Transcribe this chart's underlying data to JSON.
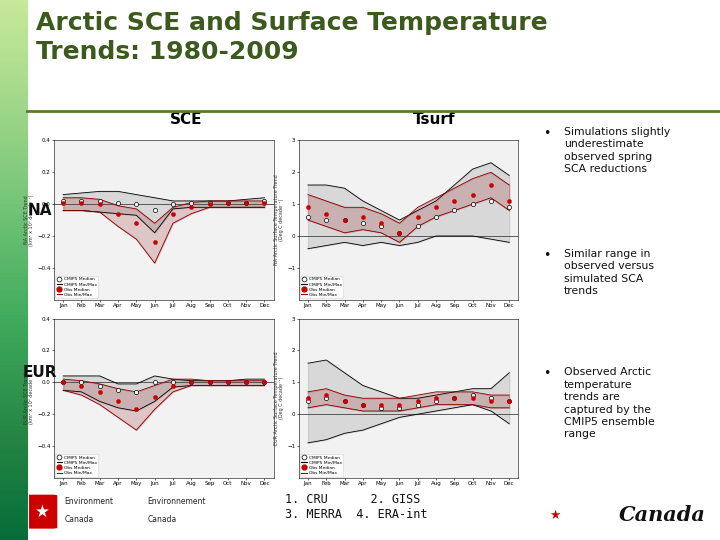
{
  "title_line1": "Arctic SCE and Surface Temperature",
  "title_line2": "Trends: 1980-2009",
  "title_color": "#3d5a1e",
  "title_fontsize": 18,
  "bg_color": "#ffffff",
  "col_headers": [
    "SCE",
    "Tsurf"
  ],
  "row_labels": [
    "NA",
    "EUR"
  ],
  "bullet_points": [
    "Simulations slightly\nunderestimate\nobserved spring\nSCA reductions",
    "Similar range in\nobserved versus\nsimulated SCA\ntrends",
    "Observed Arctic\ntemperature\ntrends are\ncaptured by the\nCMIP5 ensemble\nrange"
  ],
  "footnote": "1. CRU      2. GISS\n3. MERRA  4. ERA-int",
  "months": [
    "Jan",
    "Feb",
    "Mar",
    "Apr",
    "May",
    "Jun",
    "Jul",
    "Aug",
    "Sep",
    "Oct",
    "Nov",
    "Dec"
  ],
  "na_sce_cmip5_median": [
    0.02,
    0.02,
    0.02,
    0.01,
    0.0,
    -0.04,
    0.0,
    0.01,
    0.01,
    0.01,
    0.01,
    0.02
  ],
  "na_sce_cmip5_max": [
    0.06,
    0.07,
    0.08,
    0.08,
    0.06,
    0.04,
    0.02,
    0.02,
    0.02,
    0.02,
    0.03,
    0.04
  ],
  "na_sce_cmip5_min": [
    -0.04,
    -0.04,
    -0.05,
    -0.06,
    -0.07,
    -0.18,
    -0.03,
    -0.02,
    -0.02,
    -0.02,
    -0.02,
    -0.02
  ],
  "na_sce_obs_median": [
    0.01,
    0.01,
    0.0,
    -0.06,
    -0.12,
    -0.24,
    -0.06,
    -0.02,
    0.0,
    0.01,
    0.01,
    0.01
  ],
  "na_sce_obs_max": [
    0.04,
    0.04,
    0.03,
    -0.01,
    -0.03,
    -0.12,
    -0.02,
    0.01,
    0.02,
    0.02,
    0.02,
    0.02
  ],
  "na_sce_obs_min": [
    -0.04,
    -0.04,
    -0.05,
    -0.14,
    -0.22,
    -0.37,
    -0.12,
    -0.06,
    -0.02,
    -0.02,
    -0.02,
    -0.02
  ],
  "na_tsurf_cmip5_median": [
    0.6,
    0.5,
    0.5,
    0.4,
    0.3,
    0.1,
    0.3,
    0.6,
    0.8,
    1.0,
    1.1,
    0.9
  ],
  "na_tsurf_cmip5_max": [
    1.6,
    1.6,
    1.5,
    1.1,
    0.8,
    0.5,
    0.8,
    1.1,
    1.6,
    2.1,
    2.3,
    1.9
  ],
  "na_tsurf_cmip5_min": [
    -0.4,
    -0.3,
    -0.2,
    -0.3,
    -0.2,
    -0.3,
    -0.2,
    0.0,
    0.0,
    0.0,
    -0.1,
    -0.2
  ],
  "na_tsurf_obs_median": [
    0.9,
    0.7,
    0.5,
    0.6,
    0.4,
    0.1,
    0.6,
    0.9,
    1.1,
    1.3,
    1.6,
    1.1
  ],
  "na_tsurf_obs_max": [
    1.3,
    1.1,
    0.9,
    0.9,
    0.7,
    0.4,
    0.9,
    1.2,
    1.5,
    1.8,
    2.0,
    1.6
  ],
  "na_tsurf_obs_min": [
    0.5,
    0.3,
    0.1,
    0.2,
    0.1,
    -0.2,
    0.3,
    0.6,
    0.8,
    1.0,
    1.2,
    0.8
  ],
  "eur_sce_cmip5_median": [
    0.0,
    0.0,
    -0.02,
    -0.05,
    -0.06,
    0.0,
    0.0,
    0.0,
    0.0,
    0.0,
    0.0,
    0.0
  ],
  "eur_sce_cmip5_max": [
    0.04,
    0.04,
    0.04,
    -0.01,
    -0.01,
    0.04,
    0.02,
    0.01,
    0.01,
    0.01,
    0.02,
    0.02
  ],
  "eur_sce_cmip5_min": [
    -0.05,
    -0.06,
    -0.12,
    -0.16,
    -0.18,
    -0.12,
    -0.03,
    -0.02,
    -0.02,
    -0.02,
    -0.02,
    -0.02
  ],
  "eur_sce_obs_median": [
    0.0,
    -0.02,
    -0.06,
    -0.12,
    -0.17,
    -0.09,
    -0.02,
    0.0,
    0.0,
    0.0,
    0.0,
    0.0
  ],
  "eur_sce_obs_max": [
    0.02,
    0.01,
    -0.01,
    -0.04,
    -0.06,
    -0.02,
    0.02,
    0.02,
    0.01,
    0.01,
    0.01,
    0.01
  ],
  "eur_sce_obs_min": [
    -0.05,
    -0.08,
    -0.14,
    -0.22,
    -0.3,
    -0.17,
    -0.06,
    -0.02,
    -0.02,
    -0.02,
    -0.02,
    -0.02
  ],
  "eur_tsurf_cmip5_median": [
    0.4,
    0.5,
    0.4,
    0.3,
    0.2,
    0.2,
    0.3,
    0.4,
    0.5,
    0.6,
    0.5,
    0.4
  ],
  "eur_tsurf_cmip5_max": [
    1.6,
    1.7,
    1.3,
    0.9,
    0.7,
    0.5,
    0.5,
    0.6,
    0.7,
    0.8,
    0.8,
    1.3
  ],
  "eur_tsurf_cmip5_min": [
    -0.9,
    -0.8,
    -0.6,
    -0.5,
    -0.3,
    -0.1,
    0.0,
    0.1,
    0.2,
    0.3,
    0.1,
    -0.3
  ],
  "eur_tsurf_obs_median": [
    0.5,
    0.6,
    0.4,
    0.3,
    0.3,
    0.3,
    0.4,
    0.5,
    0.5,
    0.5,
    0.4,
    0.4
  ],
  "eur_tsurf_obs_max": [
    0.7,
    0.8,
    0.6,
    0.5,
    0.5,
    0.5,
    0.6,
    0.7,
    0.7,
    0.7,
    0.6,
    0.6
  ],
  "eur_tsurf_obs_min": [
    0.2,
    0.3,
    0.2,
    0.1,
    0.1,
    0.1,
    0.2,
    0.3,
    0.3,
    0.3,
    0.2,
    0.2
  ],
  "cmip5_color": "#000000",
  "obs_color": "#8b0000",
  "obs_fill_color": "#cc0000",
  "green_gradient_start": "#b8cc88",
  "green_gradient_end": "#e8ede0"
}
